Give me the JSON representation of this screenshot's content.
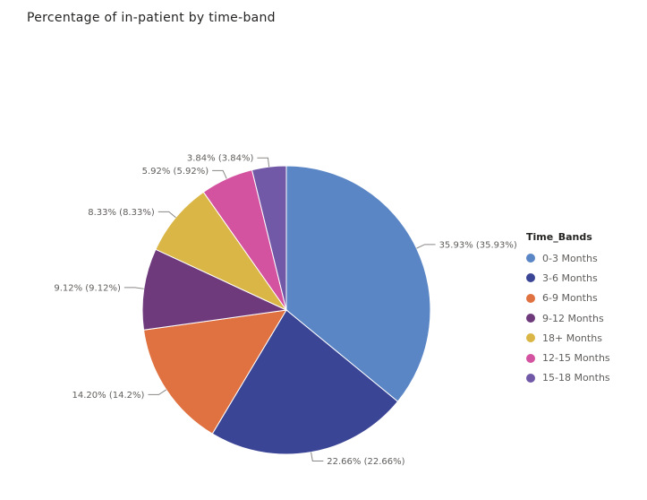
{
  "chart_title": "Percentage of in-patient by time-band",
  "chart_data": {
    "type": "pie",
    "title": "Percentage of in-patient by time-band",
    "legend_title": "Time_Bands",
    "legend_position": "right",
    "slices": [
      {
        "name": "0-3 Months",
        "value": 35.93,
        "label": "35.93% (35.93%)",
        "color": "#5b86c5"
      },
      {
        "name": "3-6 Months",
        "value": 22.66,
        "label": "22.66% (22.66%)",
        "color": "#3b4595"
      },
      {
        "name": "6-9 Months",
        "value": 14.2,
        "label": "14.20% (14.2%)",
        "color": "#e07242"
      },
      {
        "name": "9-12 Months",
        "value": 9.12,
        "label": "9.12% (9.12%)",
        "color": "#6e3a7c"
      },
      {
        "name": "18+ Months",
        "value": 8.33,
        "label": "8.33% (8.33%)",
        "color": "#d9b645"
      },
      {
        "name": "12-15 Months",
        "value": 5.92,
        "label": "5.92% (5.92%)",
        "color": "#d453a0"
      },
      {
        "name": "15-18 Months",
        "value": 3.84,
        "label": "3.84% (3.84%)",
        "color": "#7159a8"
      }
    ]
  }
}
